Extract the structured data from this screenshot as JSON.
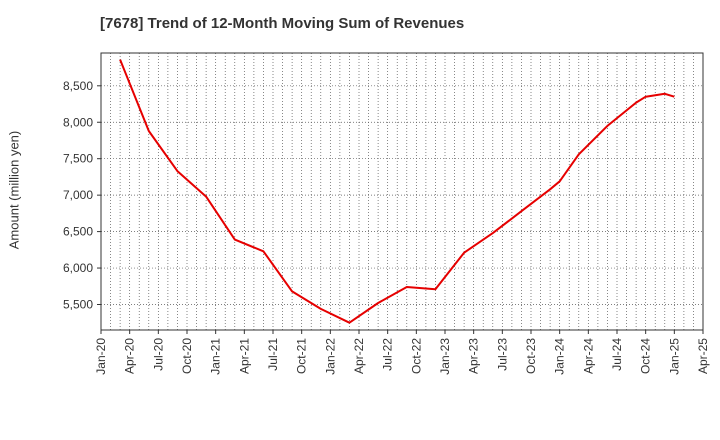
{
  "chart_data": {
    "type": "line",
    "title": "[7678]  Trend of 12-Month Moving Sum of Revenues",
    "xlabel": "",
    "ylabel": "Amount (million yen)",
    "x_ticks": [
      "Jan-20",
      "Apr-20",
      "Jul-20",
      "Oct-20",
      "Jan-21",
      "Apr-21",
      "Jul-21",
      "Oct-21",
      "Jan-22",
      "Apr-22",
      "Jul-22",
      "Oct-22",
      "Jan-23",
      "Apr-23",
      "Jul-23",
      "Oct-23",
      "Jan-24",
      "Apr-24",
      "Jul-24",
      "Oct-24",
      "Jan-25",
      "Apr-25"
    ],
    "y_ticks": [
      "5,500",
      "6,000",
      "6,500",
      "7,000",
      "7,500",
      "8,000",
      "8,500"
    ],
    "ylim": [
      5150,
      8950
    ],
    "xlim": [
      "2020-01",
      "2025-04"
    ],
    "grid": true,
    "series_color": "#e60000",
    "series": [
      {
        "x": [
          "2020-03",
          "2020-06",
          "2020-09",
          "2020-12",
          "2021-03",
          "2021-06",
          "2021-09",
          "2021-12",
          "2022-03",
          "2022-06",
          "2022-09",
          "2022-12",
          "2023-03",
          "2023-06",
          "2023-09",
          "2023-12",
          "2024-01",
          "2024-03",
          "2024-06",
          "2024-09",
          "2024-10",
          "2024-12",
          "2025-01"
        ],
        "values": [
          8860,
          7880,
          7330,
          6980,
          6390,
          6230,
          5680,
          5440,
          5250,
          5520,
          5740,
          5710,
          6210,
          6480,
          6780,
          7080,
          7190,
          7560,
          7950,
          8270,
          8350,
          8390,
          8350
        ]
      }
    ]
  }
}
